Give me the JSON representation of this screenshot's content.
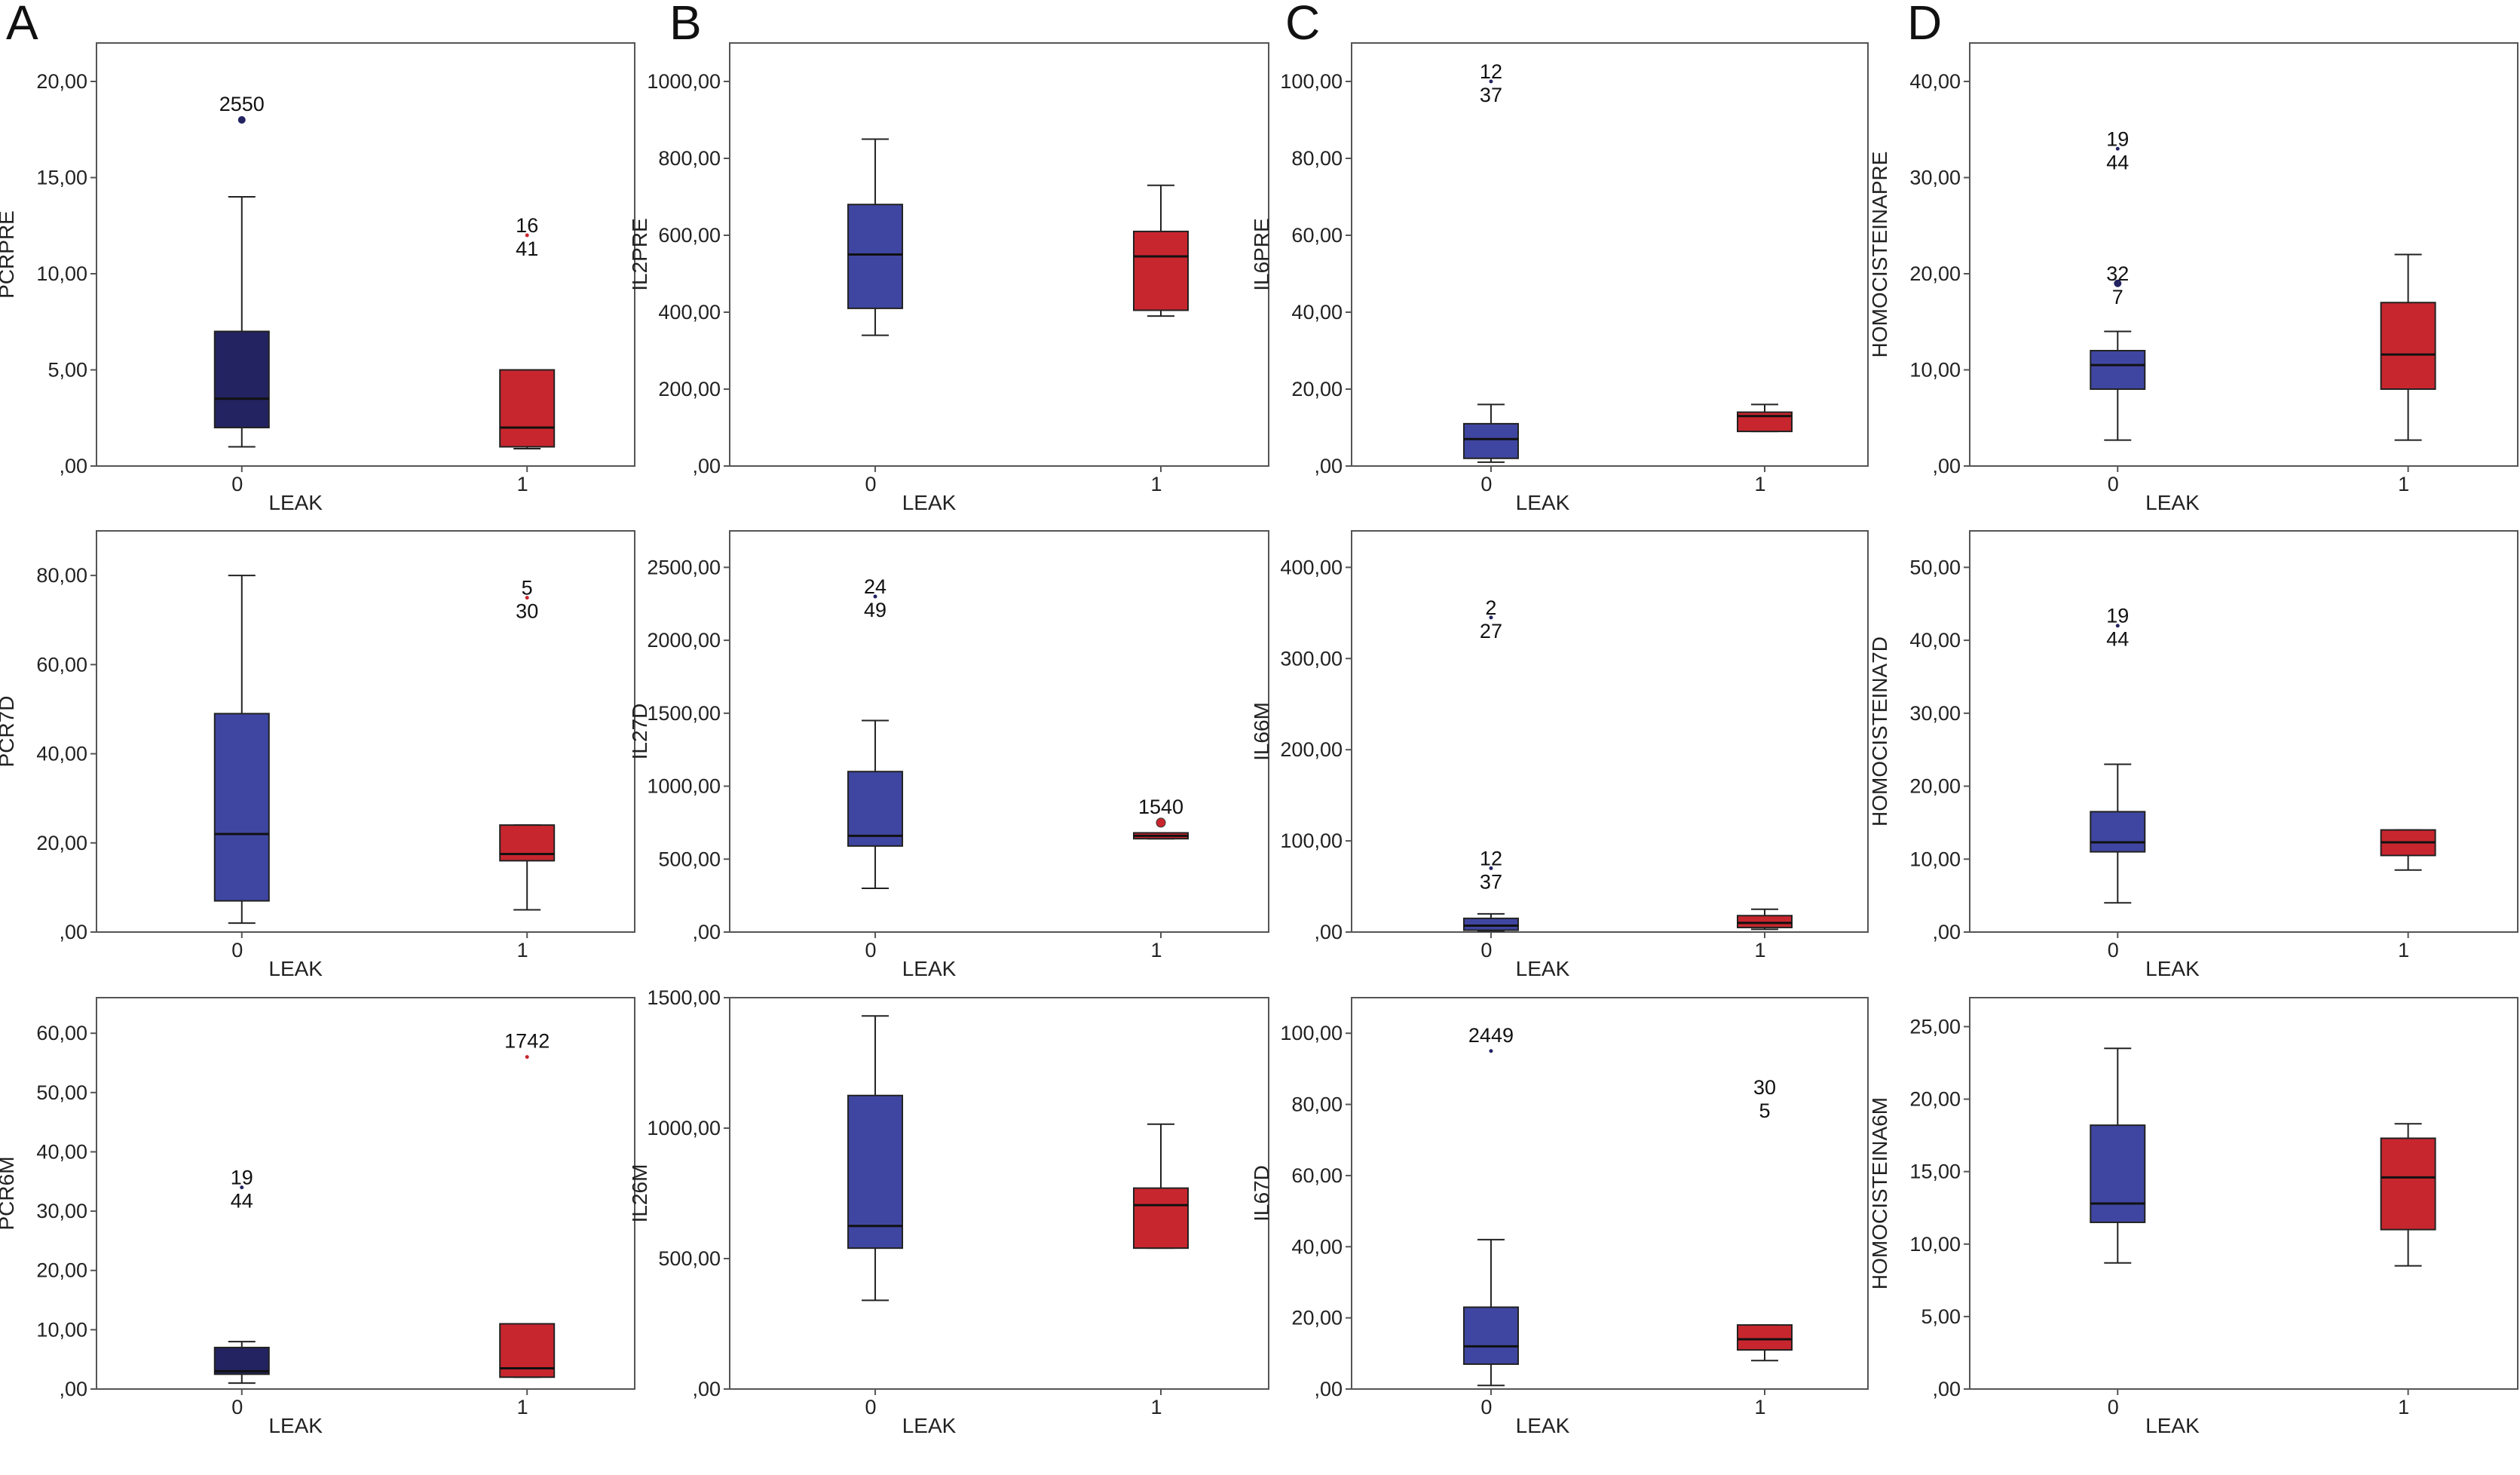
{
  "colors": {
    "group0": "#3f46a1",
    "group0_dark": "#232361",
    "group1": "#c8262e",
    "frame": "#555555",
    "whisker": "#222222"
  },
  "panel_letters": [
    "A",
    "B",
    "C",
    "D"
  ],
  "chart_data": [
    {
      "type": "boxplot",
      "column": 0,
      "row": 0,
      "ylabel": "PCRPRE",
      "xlabel": "LEAK",
      "categories": [
        "0",
        "1"
      ],
      "ylim": [
        0,
        22
      ],
      "ticks": [
        "0",
        "5",
        "10",
        "15",
        "20"
      ],
      "tick_labels": [
        ",00",
        "5,00",
        "10,00",
        "15,00",
        "20,00"
      ],
      "boxes": [
        {
          "group": "0",
          "color": "group0_dark",
          "min": 1,
          "q1": 2,
          "median": 3.5,
          "q3": 7,
          "max": 14
        },
        {
          "group": "1",
          "color": "group1",
          "min": 0.9,
          "q1": 1,
          "median": 2,
          "q3": 5,
          "max": 5
        }
      ],
      "outliers": [
        {
          "group": "0",
          "y": 18,
          "label": "2550",
          "marker": "dot"
        },
        {
          "group": "1",
          "y": 12,
          "label": "16\n41",
          "marker": "tiny"
        }
      ]
    },
    {
      "type": "boxplot",
      "column": 0,
      "row": 1,
      "ylabel": "PCR7D",
      "xlabel": "LEAK",
      "categories": [
        "0",
        "1"
      ],
      "ylim": [
        0,
        90
      ],
      "ticks": [
        "0",
        "20",
        "40",
        "60",
        "80"
      ],
      "tick_labels": [
        ",00",
        "20,00",
        "40,00",
        "60,00",
        "80,00"
      ],
      "boxes": [
        {
          "group": "0",
          "color": "group0",
          "min": 2,
          "q1": 7,
          "median": 22,
          "q3": 49,
          "max": 80
        },
        {
          "group": "1",
          "color": "group1",
          "min": 5,
          "q1": 16,
          "median": 17.5,
          "q3": 24,
          "max": 24
        }
      ],
      "outliers": [
        {
          "group": "1",
          "y": 75,
          "label": "5\n30",
          "marker": "tiny"
        }
      ]
    },
    {
      "type": "boxplot",
      "column": 0,
      "row": 2,
      "ylabel": "PCR6M",
      "xlabel": "LEAK",
      "categories": [
        "0",
        "1"
      ],
      "ylim": [
        0,
        66
      ],
      "ticks": [
        "0",
        "10",
        "20",
        "30",
        "40",
        "50",
        "60"
      ],
      "tick_labels": [
        ",00",
        "10,00",
        "20,00",
        "30,00",
        "40,00",
        "50,00",
        "60,00"
      ],
      "boxes": [
        {
          "group": "0",
          "color": "group0_dark",
          "min": 1,
          "q1": 2.5,
          "median": 3,
          "q3": 7,
          "max": 8
        },
        {
          "group": "1",
          "color": "group1",
          "min": 2,
          "q1": 2,
          "median": 3.5,
          "q3": 11,
          "max": 11
        }
      ],
      "outliers": [
        {
          "group": "0",
          "y": 34,
          "label": "19\n44",
          "marker": "tiny"
        },
        {
          "group": "1",
          "y": 56,
          "label": "1742",
          "marker": "tiny"
        }
      ]
    },
    {
      "type": "boxplot",
      "column": 1,
      "row": 0,
      "ylabel": "IL2PRE",
      "xlabel": "LEAK",
      "categories": [
        "0",
        "1"
      ],
      "ylim": [
        0,
        1100
      ],
      "ticks": [
        "0",
        "200",
        "400",
        "600",
        "800",
        "1000"
      ],
      "tick_labels": [
        ",00",
        "200,00",
        "400,00",
        "600,00",
        "800,00",
        "1000,00"
      ],
      "boxes": [
        {
          "group": "0",
          "color": "group0",
          "min": 340,
          "q1": 410,
          "median": 550,
          "q3": 680,
          "max": 850
        },
        {
          "group": "1",
          "color": "group1",
          "min": 390,
          "q1": 405,
          "median": 545,
          "q3": 610,
          "max": 730
        }
      ],
      "outliers": []
    },
    {
      "type": "boxplot",
      "column": 1,
      "row": 1,
      "ylabel": "IL27D",
      "xlabel": "LEAK",
      "categories": [
        "0",
        "1"
      ],
      "ylim": [
        0,
        2750
      ],
      "ticks": [
        "0",
        "500",
        "1000",
        "1500",
        "2000",
        "2500"
      ],
      "tick_labels": [
        ",00",
        "500,00",
        "1000,00",
        "1500,00",
        "2000,00",
        "2500,00"
      ],
      "boxes": [
        {
          "group": "0",
          "color": "group0",
          "min": 300,
          "q1": 590,
          "median": 660,
          "q3": 1100,
          "max": 1450
        },
        {
          "group": "1",
          "color": "group1",
          "min": 640,
          "q1": 640,
          "median": 660,
          "q3": 680,
          "max": 680
        }
      ],
      "outliers": [
        {
          "group": "0",
          "y": 2300,
          "label": "24\n49",
          "marker": "tiny"
        },
        {
          "group": "1",
          "y": 750,
          "label": "1540",
          "marker": "circle"
        }
      ]
    },
    {
      "type": "boxplot",
      "column": 1,
      "row": 2,
      "ylabel": "IL26M",
      "xlabel": "LEAK",
      "categories": [
        "0",
        "1"
      ],
      "ylim": [
        0,
        1500
      ],
      "ticks": [
        "0",
        "500",
        "1000",
        "1500"
      ],
      "tick_labels": [
        ",00",
        "500,00",
        "1000,00",
        "1500,00"
      ],
      "boxes": [
        {
          "group": "0",
          "color": "group0",
          "min": 340,
          "q1": 540,
          "median": 625,
          "q3": 1125,
          "max": 1430
        },
        {
          "group": "1",
          "color": "group1",
          "min": 540,
          "q1": 540,
          "median": 705,
          "q3": 770,
          "max": 1015
        }
      ],
      "outliers": []
    },
    {
      "type": "boxplot",
      "column": 2,
      "row": 0,
      "ylabel": "IL6PRE",
      "xlabel": "LEAK",
      "categories": [
        "0",
        "1"
      ],
      "ylim": [
        0,
        110
      ],
      "ticks": [
        "0",
        "20",
        "40",
        "60",
        "80",
        "100"
      ],
      "tick_labels": [
        ",00",
        "20,00",
        "40,00",
        "60,00",
        "80,00",
        "100,00"
      ],
      "boxes": [
        {
          "group": "0",
          "color": "group0",
          "min": 1,
          "q1": 2,
          "median": 7,
          "q3": 11,
          "max": 16
        },
        {
          "group": "1",
          "color": "group1",
          "min": 9,
          "q1": 9,
          "median": 13,
          "q3": 14,
          "max": 16
        }
      ],
      "outliers": [
        {
          "group": "0",
          "y": 100,
          "label": "12\n37",
          "marker": "tiny"
        }
      ]
    },
    {
      "type": "boxplot",
      "column": 2,
      "row": 1,
      "ylabel": "IL66M",
      "xlabel": "LEAK",
      "categories": [
        "0",
        "1"
      ],
      "ylim": [
        0,
        440
      ],
      "ticks": [
        "0",
        "100",
        "200",
        "300",
        "400"
      ],
      "tick_labels": [
        ",00",
        "100,00",
        "200,00",
        "300,00",
        "400,00"
      ],
      "boxes": [
        {
          "group": "0",
          "color": "group0",
          "min": 1,
          "q1": 2,
          "median": 7,
          "q3": 15,
          "max": 20
        },
        {
          "group": "1",
          "color": "group1",
          "min": 3,
          "q1": 5,
          "median": 10,
          "q3": 18,
          "max": 25
        }
      ],
      "outliers": [
        {
          "group": "0",
          "y": 345,
          "label": "2\n27",
          "marker": "tiny"
        },
        {
          "group": "0",
          "y": 70,
          "label": "12\n37",
          "marker": "tiny"
        }
      ]
    },
    {
      "type": "boxplot",
      "column": 2,
      "row": 2,
      "ylabel": "IL67D",
      "xlabel": "LEAK",
      "categories": [
        "0",
        "1"
      ],
      "ylim": [
        0,
        110
      ],
      "ticks": [
        "0",
        "20",
        "40",
        "60",
        "80",
        "100"
      ],
      "tick_labels": [
        ",00",
        "20,00",
        "40,00",
        "60,00",
        "80,00",
        "100,00"
      ],
      "boxes": [
        {
          "group": "0",
          "color": "group0",
          "min": 1,
          "q1": 7,
          "median": 12,
          "q3": 23,
          "max": 42
        },
        {
          "group": "1",
          "color": "group1",
          "min": 8,
          "q1": 11,
          "median": 14,
          "q3": 18,
          "max": 18
        }
      ],
      "outliers": [
        {
          "group": "0",
          "y": 95,
          "label": "2449",
          "marker": "tiny"
        },
        {
          "group": "1",
          "y": 82,
          "label": "30\n5",
          "marker": "none"
        }
      ]
    },
    {
      "type": "boxplot",
      "column": 3,
      "row": 0,
      "ylabel": "HOMOCISTEINAPRE",
      "xlabel": "LEAK",
      "categories": [
        "0",
        "1"
      ],
      "ylim": [
        0,
        44
      ],
      "ticks": [
        "0",
        "10",
        "20",
        "30",
        "40"
      ],
      "tick_labels": [
        ",00",
        "10,00",
        "20,00",
        "30,00",
        "40,00"
      ],
      "boxes": [
        {
          "group": "0",
          "color": "group0",
          "min": 2.7,
          "q1": 8,
          "median": 10.5,
          "q3": 12,
          "max": 14
        },
        {
          "group": "1",
          "color": "group1",
          "min": 2.7,
          "q1": 8,
          "median": 11.6,
          "q3": 17,
          "max": 22
        }
      ],
      "outliers": [
        {
          "group": "0",
          "y": 33,
          "label": "19\n44",
          "marker": "tiny"
        },
        {
          "group": "0",
          "y": 19,
          "label": "32\n7",
          "marker": "dot"
        }
      ]
    },
    {
      "type": "boxplot",
      "column": 3,
      "row": 1,
      "ylabel": "HOMOCISTEINA7D",
      "xlabel": "LEAK",
      "categories": [
        "0",
        "1"
      ],
      "ylim": [
        0,
        55
      ],
      "ticks": [
        "0",
        "10",
        "20",
        "30",
        "40",
        "50"
      ],
      "tick_labels": [
        ",00",
        "10,00",
        "20,00",
        "30,00",
        "40,00",
        "50,00"
      ],
      "boxes": [
        {
          "group": "0",
          "color": "group0",
          "min": 4,
          "q1": 11,
          "median": 12.3,
          "q3": 16.5,
          "max": 23
        },
        {
          "group": "1",
          "color": "group1",
          "min": 8.5,
          "q1": 10.5,
          "median": 12.3,
          "q3": 14,
          "max": 14
        }
      ],
      "outliers": [
        {
          "group": "0",
          "y": 42,
          "label": "19\n44",
          "marker": "tiny"
        }
      ]
    },
    {
      "type": "boxplot",
      "column": 3,
      "row": 2,
      "ylabel": "HOMOCISTEINA6M",
      "xlabel": "LEAK",
      "categories": [
        "0",
        "1"
      ],
      "ylim": [
        0,
        27
      ],
      "ticks": [
        "0",
        "5",
        "10",
        "15",
        "20",
        "25"
      ],
      "tick_labels": [
        ",00",
        "5,00",
        "10,00",
        "15,00",
        "20,00",
        "25,00"
      ],
      "boxes": [
        {
          "group": "0",
          "color": "group0",
          "min": 8.7,
          "q1": 11.5,
          "median": 12.8,
          "q3": 18.2,
          "max": 23.5
        },
        {
          "group": "1",
          "color": "group1",
          "min": 8.5,
          "q1": 11,
          "median": 14.6,
          "q3": 17.3,
          "max": 18.3
        }
      ],
      "outliers": []
    }
  ]
}
